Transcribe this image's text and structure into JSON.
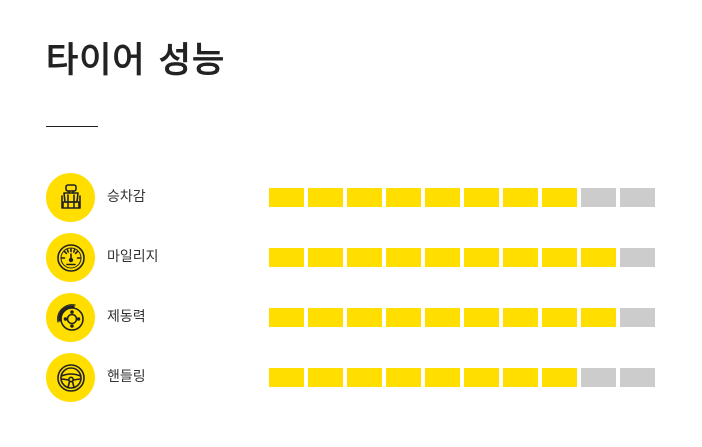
{
  "title": "타이어 성능",
  "colors": {
    "accent": "#FFDE00",
    "inactive": "#CCCCCC",
    "text": "#222222"
  },
  "metrics": [
    {
      "label": "승차감",
      "icon": "seat-icon",
      "score": 8,
      "max": 10
    },
    {
      "label": "마일리지",
      "icon": "speedometer-icon",
      "score": 9,
      "max": 10
    },
    {
      "label": "제동력",
      "icon": "brake-disc-icon",
      "score": 9,
      "max": 10
    },
    {
      "label": "핸들링",
      "icon": "steering-wheel-icon",
      "score": 8,
      "max": 10
    }
  ]
}
